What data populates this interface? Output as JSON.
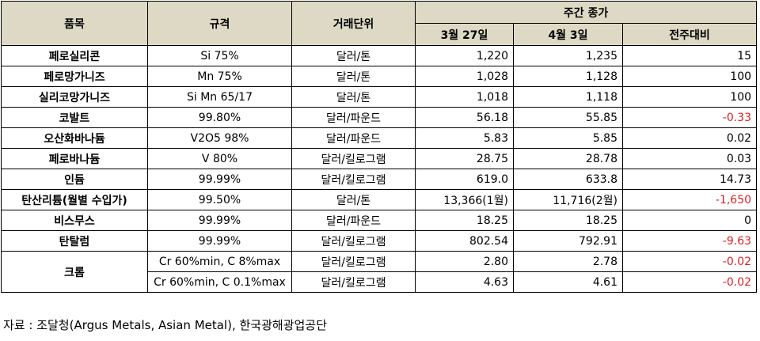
{
  "table": {
    "header": {
      "item": "품목",
      "spec": "규격",
      "unit": "거래단위",
      "group": "주간 종가",
      "sub": [
        "3월 27일",
        "4월 3일",
        "전주대비"
      ]
    },
    "rows": [
      {
        "item": "페로실리콘",
        "entries": [
          [
            "Si 75%",
            "달러/톤",
            "1,220",
            "1,235",
            "15"
          ]
        ]
      },
      {
        "item": "페로망가니즈",
        "entries": [
          [
            "Mn 75%",
            "달러/톤",
            "1,028",
            "1,128",
            "100"
          ]
        ]
      },
      {
        "item": "실리코망가니즈",
        "entries": [
          [
            "Si Mn 65/17",
            "달러/톤",
            "1,018",
            "1,118",
            "100"
          ]
        ]
      },
      {
        "item": "코발트",
        "entries": [
          [
            "99.80%",
            "달러/파운드",
            "56.18",
            "55.85",
            "-0.33"
          ]
        ]
      },
      {
        "item": "오산화바나듐",
        "entries": [
          [
            "V2O5 98%",
            "달러/파운드",
            "5.83",
            "5.85",
            "0.02"
          ]
        ]
      },
      {
        "item": "페로바나듐",
        "entries": [
          [
            "V 80%",
            "달러/킬로그램",
            "28.75",
            "28.78",
            "0.03"
          ]
        ]
      },
      {
        "item": "인듐",
        "entries": [
          [
            "99.99%",
            "달러/킬로그램",
            "619.0",
            "633.8",
            "14.73"
          ]
        ]
      },
      {
        "item": "탄산리튬(월별 수입가)",
        "entries": [
          [
            "99.50%",
            "달러/톤",
            "13,366(1월)",
            "11,716(2월)",
            "-1,650"
          ]
        ]
      },
      {
        "item": "비스무스",
        "entries": [
          [
            "99.99%",
            "달러/파운드",
            "18.25",
            "18.25",
            "0"
          ]
        ]
      },
      {
        "item": "탄탈럼",
        "entries": [
          [
            "99.99%",
            "달러/킬로그램",
            "802.54",
            "792.91",
            "-9.63"
          ]
        ]
      },
      {
        "item": "크롬",
        "entries": [
          [
            "Cr 60%min, C 8%max",
            "달러/킬로그램",
            "2.80",
            "2.78",
            "-0.02"
          ],
          [
            "Cr 60%min, C 0.1%max",
            "달러/킬로그램",
            "4.63",
            "4.61",
            "-0.02"
          ]
        ]
      }
    ],
    "source": "자료 : 조달청(Argus Metals, Asian Metal), 한국광해광업공단"
  }
}
